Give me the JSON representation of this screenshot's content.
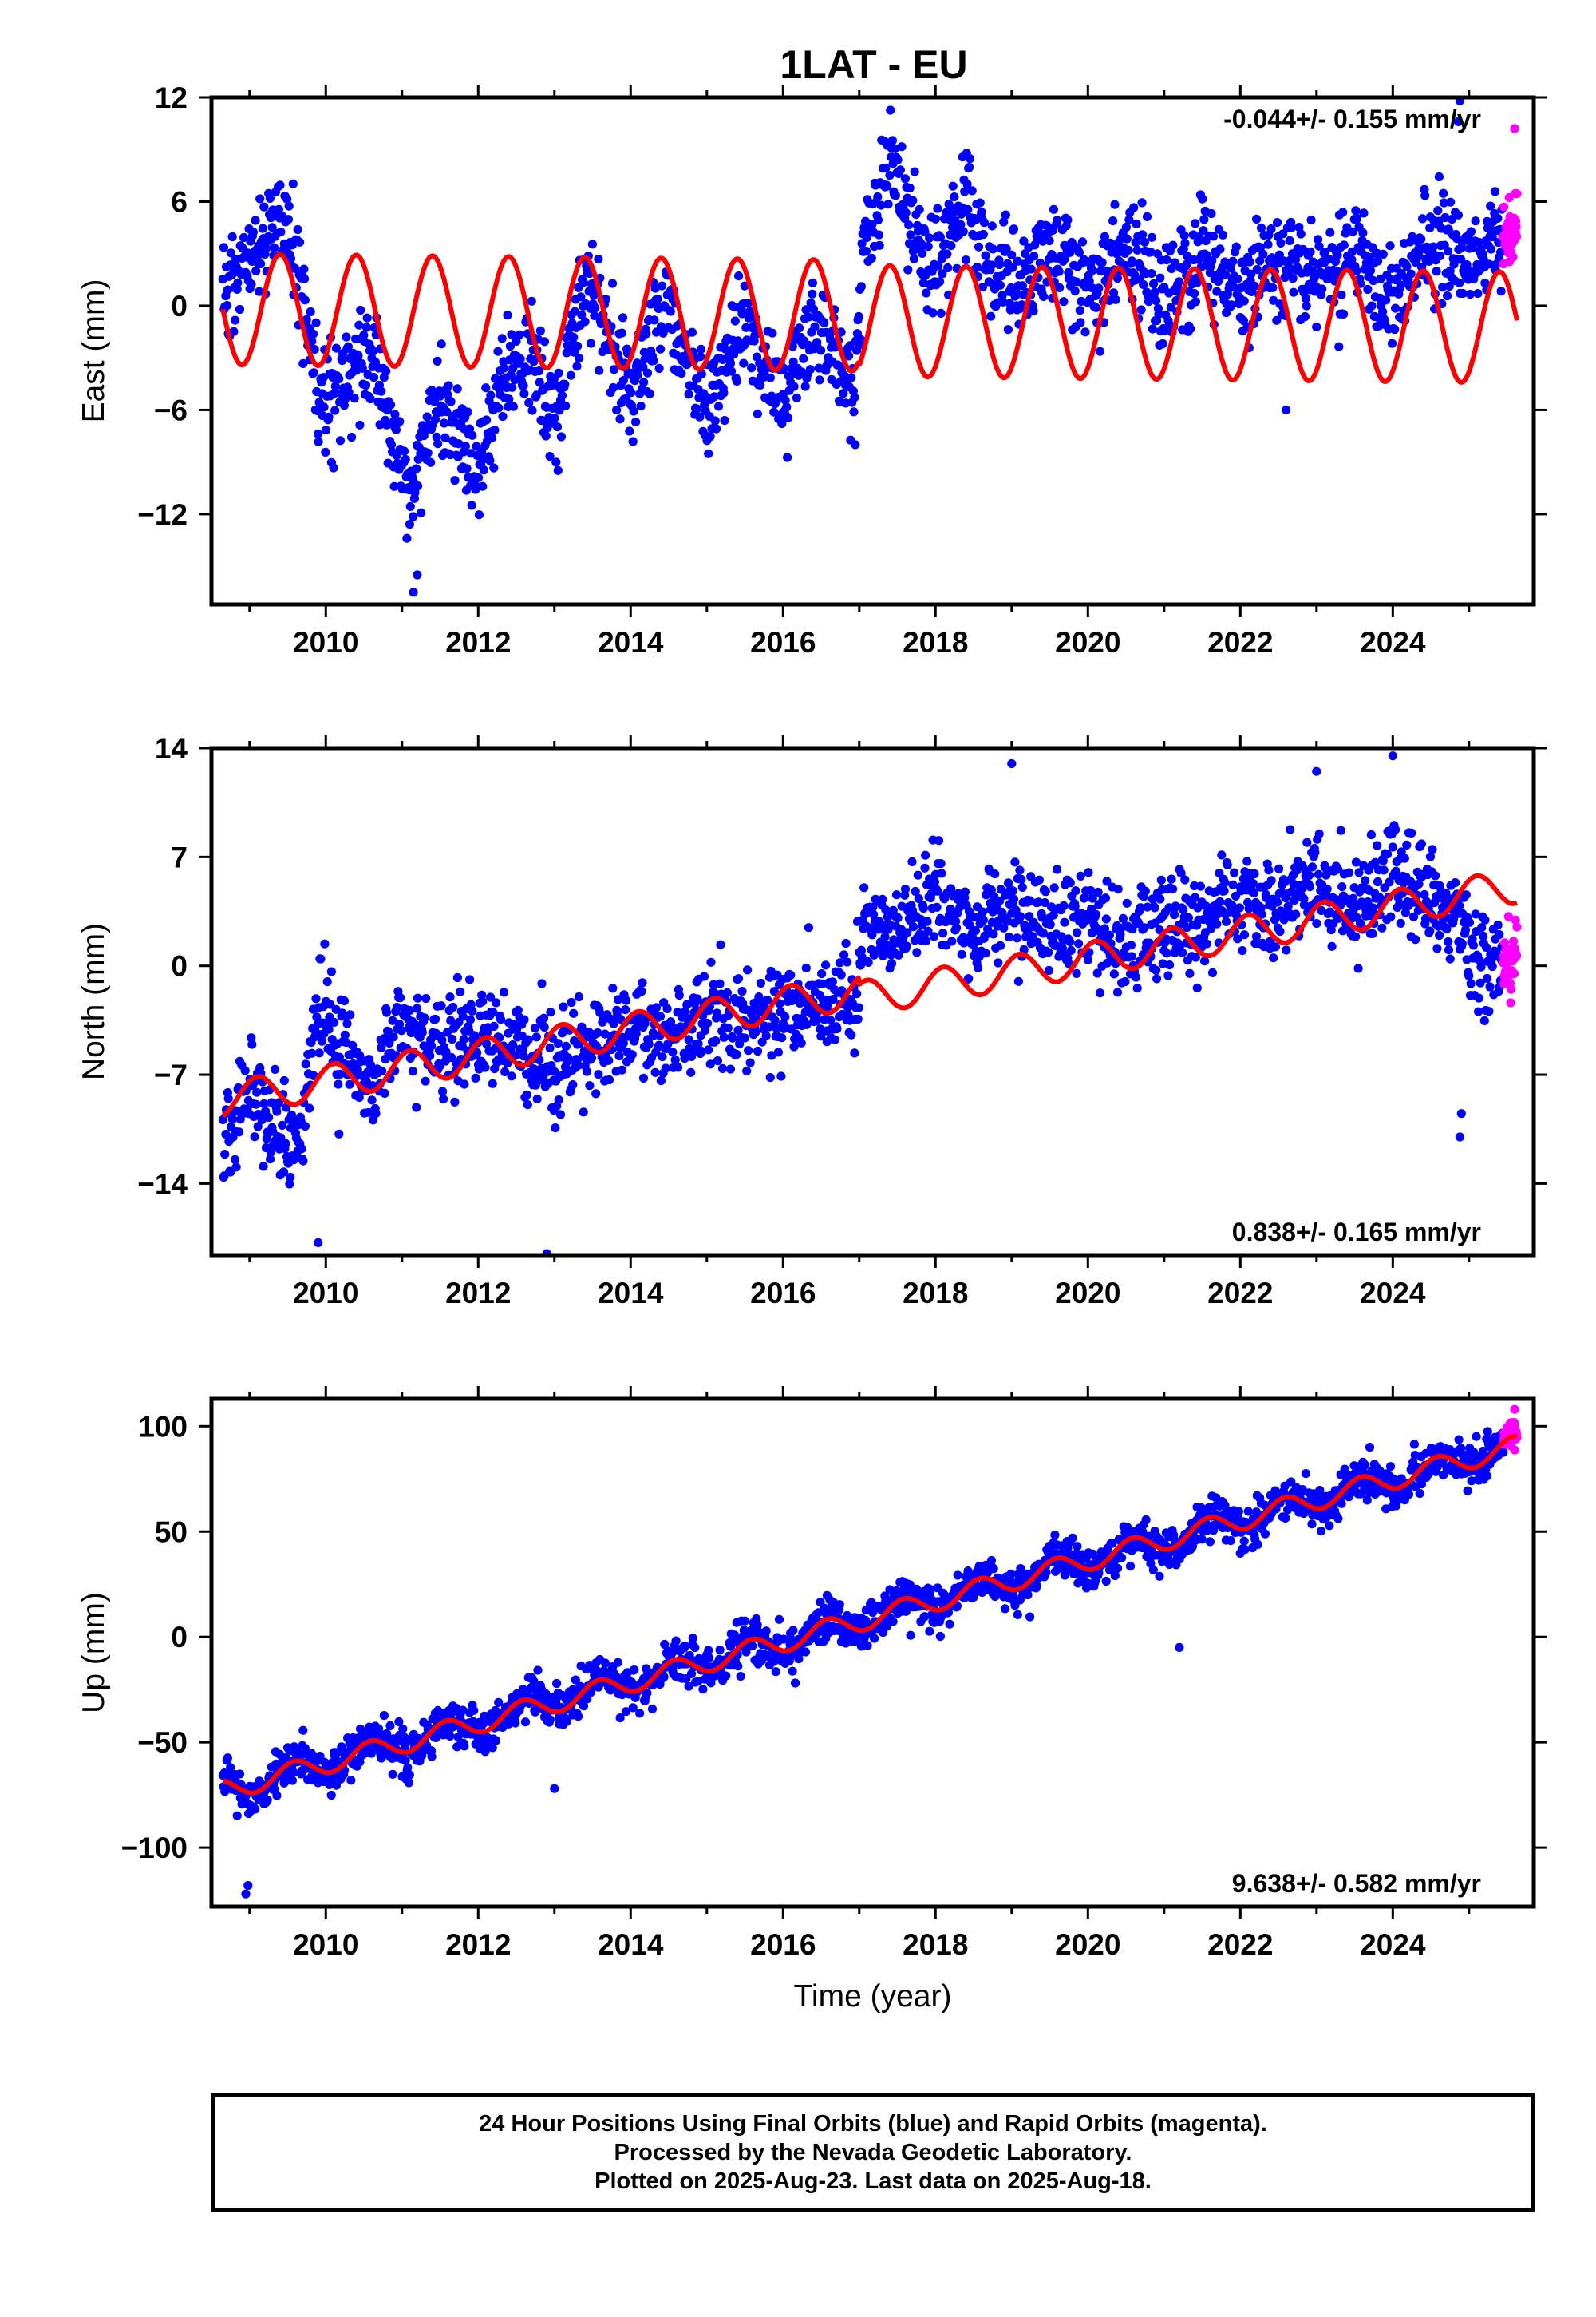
{
  "title": "1LAT - EU",
  "colors": {
    "final": "#0000ff",
    "rapid": "#ff00ff",
    "model": "#ff0000",
    "frame": "#000000"
  },
  "chart_data": [
    {
      "type": "scatter",
      "ylabel": "East (mm)",
      "xlabel": "",
      "rate_label": "-0.044+/- 0.155 mm/yr",
      "rate_position": "top-right",
      "xlim": [
        2008.5,
        2025.85
      ],
      "ylim": [
        -17.2,
        12
      ],
      "xticks": [
        "2010",
        "2012",
        "2014",
        "2016",
        "2018",
        "2020",
        "2022",
        "2024"
      ],
      "yticks": [
        "12",
        "6",
        "0",
        "-6",
        "-12"
      ],
      "data_start": 2008.65,
      "data_end": 2025.63,
      "rapid_start": 2025.45,
      "trend_rate_mm_yr": -0.044,
      "model": {
        "offset_before": -0.2,
        "offset_after": -0.5,
        "step_epoch": 2017.0,
        "amplitude": 3.2,
        "phase_peak": 0.4
      },
      "residual_knots": [
        [
          2008.65,
          0.5
        ],
        [
          2009.0,
          2.5
        ],
        [
          2009.4,
          5.5
        ],
        [
          2009.6,
          3.5
        ],
        [
          2009.9,
          -6.0
        ],
        [
          2010.3,
          -4.0
        ],
        [
          2010.6,
          -2.5
        ],
        [
          2010.9,
          -8.0
        ],
        [
          2011.1,
          -11.0
        ],
        [
          2011.4,
          -6.0
        ],
        [
          2011.7,
          -7.0
        ],
        [
          2012.0,
          -10.0
        ],
        [
          2012.3,
          -4.0
        ],
        [
          2012.7,
          -3.0
        ],
        [
          2013.0,
          -7.0
        ],
        [
          2013.4,
          1.5
        ],
        [
          2013.8,
          -2.5
        ],
        [
          2014.0,
          -5.0
        ],
        [
          2014.4,
          0.0
        ],
        [
          2014.8,
          -3.5
        ],
        [
          2015.0,
          -6.5
        ],
        [
          2015.5,
          -0.5
        ],
        [
          2015.8,
          -4.0
        ],
        [
          2016.0,
          -5.5
        ],
        [
          2016.4,
          -1.0
        ],
        [
          2016.7,
          -2.0
        ],
        [
          2016.95,
          -5.0
        ],
        [
          2017.05,
          3.5
        ],
        [
          2017.4,
          8.0
        ],
        [
          2017.8,
          3.5
        ],
        [
          2018.0,
          2.5
        ],
        [
          2018.4,
          6.0
        ],
        [
          2018.8,
          1.5
        ],
        [
          2019.2,
          1.5
        ],
        [
          2019.5,
          3.5
        ],
        [
          2020.0,
          0.5
        ],
        [
          2020.5,
          3.5
        ],
        [
          2021.0,
          0.0
        ],
        [
          2021.5,
          3.0
        ],
        [
          2022.0,
          0.5
        ],
        [
          2022.5,
          2.5
        ],
        [
          2023.0,
          1.0
        ],
        [
          2023.5,
          3.5
        ],
        [
          2024.0,
          0.5
        ],
        [
          2024.5,
          4.0
        ],
        [
          2025.0,
          2.5
        ],
        [
          2025.63,
          4.5
        ]
      ],
      "scatter_sd": 1.5,
      "outliers": [
        [
          2024.88,
          11.8
        ],
        [
          2024.86,
          10.6
        ],
        [
          2025.6,
          10.2
        ],
        [
          2011.15,
          -16.5
        ],
        [
          2011.2,
          -15.5
        ],
        [
          2022.6,
          -6.0
        ]
      ]
    },
    {
      "type": "scatter",
      "ylabel": "North (mm)",
      "xlabel": "",
      "rate_label": "0.838+/- 0.165 mm/yr",
      "rate_position": "bottom-right",
      "xlim": [
        2008.5,
        2025.85
      ],
      "ylim": [
        -18.6,
        14
      ],
      "xticks": [
        "2010",
        "2012",
        "2014",
        "2016",
        "2018",
        "2020",
        "2022",
        "2024"
      ],
      "yticks": [
        "14",
        "7",
        "0",
        "-7",
        "-14"
      ],
      "data_start": 2008.65,
      "data_end": 2025.63,
      "rapid_start": 2025.45,
      "trend_rate_mm_yr": 0.838,
      "model": {
        "offset_before": -8.6,
        "offset_after": -9.1,
        "step_epoch": 2017.0,
        "amplitude": 1.1,
        "phase_peak": 0.1
      },
      "residual_knots": [
        [
          2008.65,
          -11.5
        ],
        [
          2009.0,
          -7.5
        ],
        [
          2009.3,
          -10.0
        ],
        [
          2009.6,
          -12.0
        ],
        [
          2009.9,
          -3.0
        ],
        [
          2010.3,
          -6.0
        ],
        [
          2010.6,
          -7.5
        ],
        [
          2011.0,
          -3.5
        ],
        [
          2011.5,
          -5.5
        ],
        [
          2012.0,
          -4.5
        ],
        [
          2012.5,
          -5.5
        ],
        [
          2013.0,
          -6.5
        ],
        [
          2013.5,
          -5.0
        ],
        [
          2014.0,
          -4.0
        ],
        [
          2014.5,
          -5.0
        ],
        [
          2015.0,
          -3.0
        ],
        [
          2015.5,
          -4.0
        ],
        [
          2016.0,
          -3.0
        ],
        [
          2016.5,
          -2.5
        ],
        [
          2016.95,
          -2.0
        ],
        [
          2017.05,
          2.5
        ],
        [
          2017.5,
          2.0
        ],
        [
          2018.0,
          4.5
        ],
        [
          2018.5,
          2.0
        ],
        [
          2019.0,
          4.0
        ],
        [
          2019.5,
          2.0
        ],
        [
          2020.0,
          3.0
        ],
        [
          2020.5,
          1.5
        ],
        [
          2021.0,
          2.5
        ],
        [
          2021.5,
          3.0
        ],
        [
          2022.0,
          4.0
        ],
        [
          2022.5,
          3.5
        ],
        [
          2023.0,
          5.5
        ],
        [
          2023.5,
          4.0
        ],
        [
          2024.0,
          6.0
        ],
        [
          2024.5,
          4.0
        ],
        [
          2024.8,
          3.5
        ],
        [
          2025.1,
          0.0
        ],
        [
          2025.63,
          0.5
        ]
      ],
      "scatter_sd": 1.6,
      "outliers": [
        [
          2009.9,
          -17.8
        ],
        [
          2012.9,
          -18.5
        ],
        [
          2019.0,
          13.0
        ],
        [
          2023.0,
          12.5
        ],
        [
          2024.0,
          13.5
        ],
        [
          2024.9,
          -9.5
        ],
        [
          2024.88,
          -11.0
        ]
      ]
    },
    {
      "type": "scatter",
      "ylabel": "Up (mm)",
      "xlabel": "Time (year)",
      "rate_label": "9.638+/- 0.582 mm/yr",
      "rate_position": "bottom-right",
      "xlim": [
        2008.5,
        2025.85
      ],
      "ylim": [
        -128,
        113
      ],
      "xticks": [
        "2010",
        "2012",
        "2014",
        "2016",
        "2018",
        "2020",
        "2022",
        "2024"
      ],
      "yticks": [
        "100",
        "50",
        "0",
        "-50",
        "-100"
      ],
      "data_start": 2008.65,
      "data_end": 2025.63,
      "rapid_start": 2025.45,
      "trend_rate_mm_yr": 9.638,
      "model": {
        "offset_before": -73.0,
        "offset_after": -73.0,
        "step_epoch": 2017.0,
        "amplitude": 5.0,
        "phase_peak": 0.58
      },
      "residual_knots": [
        [
          2008.65,
          -73.0
        ],
        [
          2025.63,
          95.0
        ]
      ],
      "scatter_sd": 5.0,
      "outliers": [
        [
          2008.95,
          -122.0
        ],
        [
          2008.98,
          -118.0
        ],
        [
          2013.0,
          -72.0
        ],
        [
          2021.2,
          -5.0
        ],
        [
          2025.6,
          108.0
        ]
      ]
    }
  ],
  "footer": {
    "line1": "24 Hour Positions Using Final Orbits (blue) and Rapid Orbits (magenta).",
    "line2": "Processed by the Nevada Geodetic Laboratory.",
    "line3": "Plotted on 2025-Aug-23. Last data on 2025-Aug-18."
  }
}
